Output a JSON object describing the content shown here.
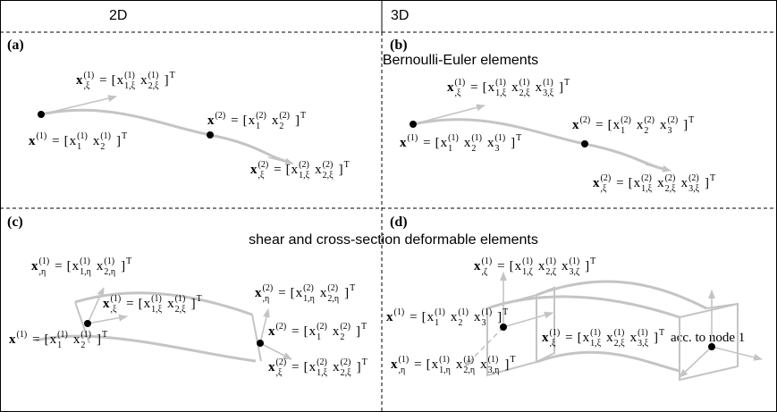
{
  "columns": [
    "2D",
    "3D"
  ],
  "row_titles": [
    "Bernoulli-Euler elements",
    "shear and cross-section deformable elements"
  ],
  "annotation": "acc. to node 1",
  "panels": [
    {
      "label": "(a)",
      "equations": [
        [
          {
            "t": "x",
            "sup": "(1)",
            "sub": ",ξ",
            "bold": true
          },
          "=",
          "[",
          {
            "t": "x",
            "sup": "(1)",
            "sub": "1,ξ"
          },
          {
            "t": "x",
            "sup": "(1)",
            "sub": "2,ξ"
          },
          {
            "t": "]",
            "sup": "T"
          }
        ],
        [
          {
            "t": "x",
            "sup": "(2)",
            "bold": true
          },
          "=",
          "[",
          {
            "t": "x",
            "sup": "(2)",
            "sub": "1"
          },
          {
            "t": "x",
            "sup": "(2)",
            "sub": "2"
          },
          {
            "t": "]",
            "sup": "T"
          }
        ],
        [
          {
            "t": "x",
            "sup": "(1)",
            "bold": true
          },
          "=",
          "[",
          {
            "t": "x",
            "sup": "(1)",
            "sub": "1"
          },
          {
            "t": "x",
            "sup": "(1)",
            "sub": "2"
          },
          {
            "t": "]",
            "sup": "T"
          }
        ],
        [
          {
            "t": "x",
            "sup": "(2)",
            "sub": ",ξ",
            "bold": true
          },
          "=",
          "[",
          {
            "t": "x",
            "sup": "(2)",
            "sub": "1,ξ"
          },
          {
            "t": "x",
            "sup": "(2)",
            "sub": "2,ξ"
          },
          {
            "t": "]",
            "sup": "T"
          }
        ]
      ]
    },
    {
      "label": "(b)",
      "equations": [
        [
          {
            "t": "x",
            "sup": "(1)",
            "sub": ",ξ",
            "bold": true
          },
          "=",
          "[",
          {
            "t": "x",
            "sup": "(1)",
            "sub": "1,ξ"
          },
          {
            "t": "x",
            "sup": "(1)",
            "sub": "2,ξ"
          },
          {
            "t": "x",
            "sup": "(1)",
            "sub": "3,ξ"
          },
          {
            "t": "]",
            "sup": "T"
          }
        ],
        [
          {
            "t": "x",
            "sup": "(2)",
            "bold": true
          },
          "=",
          "[",
          {
            "t": "x",
            "sup": "(2)",
            "sub": "1"
          },
          {
            "t": "x",
            "sup": "(2)",
            "sub": "2"
          },
          {
            "t": "x",
            "sup": "(2)",
            "sub": "3"
          },
          {
            "t": "]",
            "sup": "T"
          }
        ],
        [
          {
            "t": "x",
            "sup": "(1)",
            "bold": true
          },
          "=",
          "[",
          {
            "t": "x",
            "sup": "(1)",
            "sub": "1"
          },
          {
            "t": "x",
            "sup": "(1)",
            "sub": "2"
          },
          {
            "t": "x",
            "sup": "(1)",
            "sub": "3"
          },
          {
            "t": "]",
            "sup": "T"
          }
        ],
        [
          {
            "t": "x",
            "sup": "(2)",
            "sub": ",ξ",
            "bold": true
          },
          "=",
          "[",
          {
            "t": "x",
            "sup": "(2)",
            "sub": "1,ξ"
          },
          {
            "t": "x",
            "sup": "(2)",
            "sub": "2,ξ"
          },
          {
            "t": "x",
            "sup": "(2)",
            "sub": "3,ξ"
          },
          {
            "t": "]",
            "sup": "T"
          }
        ]
      ]
    },
    {
      "label": "(c)",
      "equations": [
        [
          {
            "t": "x",
            "sup": "(1)",
            "sub": ",η",
            "bold": true
          },
          "=",
          "[",
          {
            "t": "x",
            "sup": "(1)",
            "sub": "1,η"
          },
          {
            "t": "x",
            "sup": "(1)",
            "sub": "2,η"
          },
          {
            "t": "]",
            "sup": "T"
          }
        ],
        [
          {
            "t": "x",
            "sup": "(1)",
            "sub": ",ξ",
            "bold": true
          },
          "=",
          "[",
          {
            "t": "x",
            "sup": "(1)",
            "sub": "1,ξ"
          },
          {
            "t": "x",
            "sup": "(1)",
            "sub": "2,ξ"
          },
          {
            "t": "]",
            "sup": "T"
          }
        ],
        [
          {
            "t": "x",
            "sup": "(1)",
            "bold": true
          },
          "=",
          "[",
          {
            "t": "x",
            "sup": "(1)",
            "sub": "1"
          },
          {
            "t": "x",
            "sup": "(1)",
            "sub": "2"
          },
          {
            "t": "]",
            "sup": "T"
          }
        ],
        [
          {
            "t": "x",
            "sup": "(2)",
            "sub": ",η",
            "bold": true
          },
          "=",
          "[",
          {
            "t": "x",
            "sup": "(2)",
            "sub": "1,η"
          },
          {
            "t": "x",
            "sup": "(2)",
            "sub": "2,η"
          },
          {
            "t": "]",
            "sup": "T"
          }
        ],
        [
          {
            "t": "x",
            "sup": "(2)",
            "bold": true
          },
          "=",
          "[",
          {
            "t": "x",
            "sup": "(2)",
            "sub": "1"
          },
          {
            "t": "x",
            "sup": "(2)",
            "sub": "2"
          },
          {
            "t": "]",
            "sup": "T"
          }
        ],
        [
          {
            "t": "x",
            "sup": "(2)",
            "sub": ",ξ",
            "bold": true
          },
          "=",
          "[",
          {
            "t": "x",
            "sup": "(2)",
            "sub": "1,ξ"
          },
          {
            "t": "x",
            "sup": "(2)",
            "sub": "2,ξ"
          },
          {
            "t": "]",
            "sup": "T"
          }
        ]
      ]
    },
    {
      "label": "(d)",
      "equations": [
        [
          {
            "t": "x",
            "sup": "(1)",
            "sub": ",ζ",
            "bold": true
          },
          "=",
          "[",
          {
            "t": "x",
            "sup": "(1)",
            "sub": "1,ζ"
          },
          {
            "t": "x",
            "sup": "(1)",
            "sub": "2,ζ"
          },
          {
            "t": "x",
            "sup": "(1)",
            "sub": "3,ζ"
          },
          {
            "t": "]",
            "sup": "T"
          }
        ],
        [
          {
            "t": "x",
            "sup": "(1)",
            "bold": true
          },
          "=",
          "[",
          {
            "t": "x",
            "sup": "(1)",
            "sub": "1"
          },
          {
            "t": "x",
            "sup": "(1)",
            "sub": "2"
          },
          {
            "t": "x",
            "sup": "(1)",
            "sub": "3"
          },
          {
            "t": "]",
            "sup": "T"
          }
        ],
        [
          {
            "t": "x",
            "sup": "(1)",
            "sub": ",ξ",
            "bold": true
          },
          "=",
          "[",
          {
            "t": "x",
            "sup": "(1)",
            "sub": "1,ξ"
          },
          {
            "t": "x",
            "sup": "(1)",
            "sub": "2,ξ"
          },
          {
            "t": "x",
            "sup": "(1)",
            "sub": "3,ξ"
          },
          {
            "t": "]",
            "sup": "T"
          }
        ],
        [
          {
            "t": "x",
            "sup": "(1)",
            "sub": ",η",
            "bold": true
          },
          "=",
          "[",
          {
            "t": "x",
            "sup": "(1)",
            "sub": "1,η"
          },
          {
            "t": "x",
            "sup": "(1)",
            "sub": "2,η"
          },
          {
            "t": "x",
            "sup": "(1)",
            "sub": "3,η"
          },
          {
            "t": "]",
            "sup": "T"
          }
        ]
      ]
    }
  ]
}
